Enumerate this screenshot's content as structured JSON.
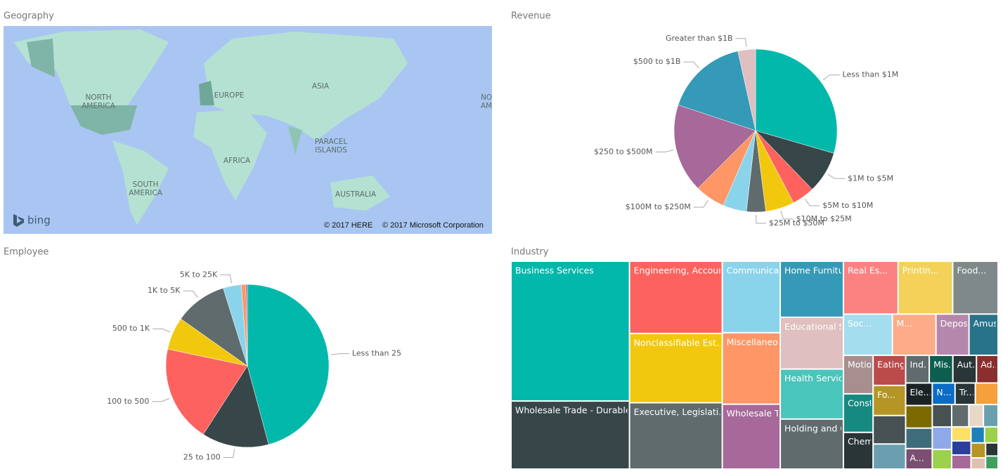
{
  "map": {
    "title": "Geography",
    "labels": [
      [
        "NORTH",
        "AMERICA"
      ],
      [
        "EUROPE"
      ],
      [
        "ASIA"
      ],
      [
        "PARACEL",
        "ISLANDS"
      ],
      [
        "AFRICA"
      ],
      [
        "SOUTH",
        "AMERICA"
      ],
      [
        "AUSTRALIA"
      ],
      [
        "NO",
        "AM"
      ]
    ],
    "logo": "bing",
    "attribution": [
      "© 2017 HERE",
      "© 2017 Microsoft Corporation"
    ]
  },
  "chart_data": [
    {
      "type": "pie",
      "title": "Revenue",
      "categories": [
        "Less than $1M",
        "$1M to $5M",
        "$5M to $10M",
        "$10M to $25M",
        "$25M to $50M",
        null,
        "$100M to $250M",
        "$250 to $500M",
        "$500 to $1B",
        "Greater than $1B"
      ],
      "values": [
        29.5,
        8.3,
        4.5,
        5.7,
        3.8,
        4.7,
        6,
        17.6,
        16.4,
        3.5
      ],
      "colors": [
        "#01B8AA",
        "#374649",
        "#FD625E",
        "#F2C80F",
        "#5F6B6D",
        "#8AD4EB",
        "#FE9666",
        "#A66999",
        "#3599B8",
        "#DFBFBF"
      ]
    },
    {
      "type": "pie",
      "title": "Employee",
      "categories": [
        "Less than 25",
        "25 to 100",
        "100 to 500",
        "500 to 1K",
        "1K to 5K",
        "5K to 25K",
        null,
        null
      ],
      "values": [
        45.8,
        13.3,
        19.2,
        6.5,
        10.4,
        3.6,
        0.9,
        0.3
      ],
      "colors": [
        "#01B8AA",
        "#374649",
        "#FD625E",
        "#F2C80F",
        "#5F6B6D",
        "#8AD4EB",
        "#FE9666",
        "#A66999"
      ]
    },
    {
      "type": "treemap",
      "title": "Industry",
      "categories": [
        "Business Services",
        "Wholesale Trade - Durable Go...",
        "Engineering, Accounting, Rese...",
        "Nonclassifiable Est...",
        "Executive, Legislati...",
        "Communications",
        "Miscellaneous Retail",
        "Wholesale Tra...",
        "Home Furnitur...",
        "Educational Se...",
        "Health Services",
        "Holding and O...",
        "Real Es...",
        "Printin...",
        "Food...",
        "Soc...",
        "M...",
        "Deposit...",
        "Amuse...",
        "Motion...",
        "Constr...",
        "Chemic...",
        "Eating ...",
        "Fo...",
        null,
        null,
        "Ind...",
        "Mis...",
        "Aut...",
        "Ad...",
        "Ele...",
        null,
        null,
        "A...",
        "N...",
        "Tr...",
        null,
        null,
        null,
        null,
        null,
        null,
        null,
        null,
        null,
        null,
        null,
        null,
        null,
        null,
        null,
        null
      ],
      "values": [
        304,
        148,
        123,
        118,
        113,
        76,
        76,
        69,
        65,
        60,
        58,
        58,
        53,
        53,
        44,
        37,
        33,
        25,
        22,
        21,
        21,
        20,
        18,
        18,
        17,
        15,
        12,
        12,
        12,
        11,
        11,
        11,
        10,
        10,
        9,
        8,
        9,
        8,
        8,
        7,
        7,
        6,
        6,
        5,
        5,
        5,
        4,
        4,
        4,
        3,
        3,
        3
      ],
      "colors": [
        "#01B8AA",
        "#374649",
        "#FD625E",
        "#F2C80F",
        "#5F6B6D",
        "#8AD4EB",
        "#FE9666",
        "#A66999",
        "#3599B8",
        "#DFBFBF",
        "#4AC5BB",
        "#5F6B6D",
        "#FB8281",
        "#F4D25A",
        "#7F898A",
        "#A4DDEE",
        "#FDAB89",
        "#B687AC",
        "#28738A",
        "#A78F8F",
        "#168980",
        "#293537",
        "#BB4A4A",
        "#B59525",
        "#475052",
        "#6A9FB0",
        "#5F6B6D",
        "#0E5E4F",
        "#293537",
        "#8B2E2E",
        "#1C2325",
        "#7A6A00",
        "#3F6C7A",
        "#7B4F71",
        "#0A6CC4",
        "#293537",
        "#F5A03C",
        "#475052",
        "#8FA8E8",
        "#9BD14B",
        "#5F6B6D",
        "#E8D8C8",
        "#6A9FB0",
        "#FFE066",
        "#2A3F9A",
        "#A66999",
        "#1F7FB8",
        "#9BD14B",
        "#B59525",
        "#E0C0B0",
        "#293537",
        "#3F9F5F"
      ]
    }
  ]
}
